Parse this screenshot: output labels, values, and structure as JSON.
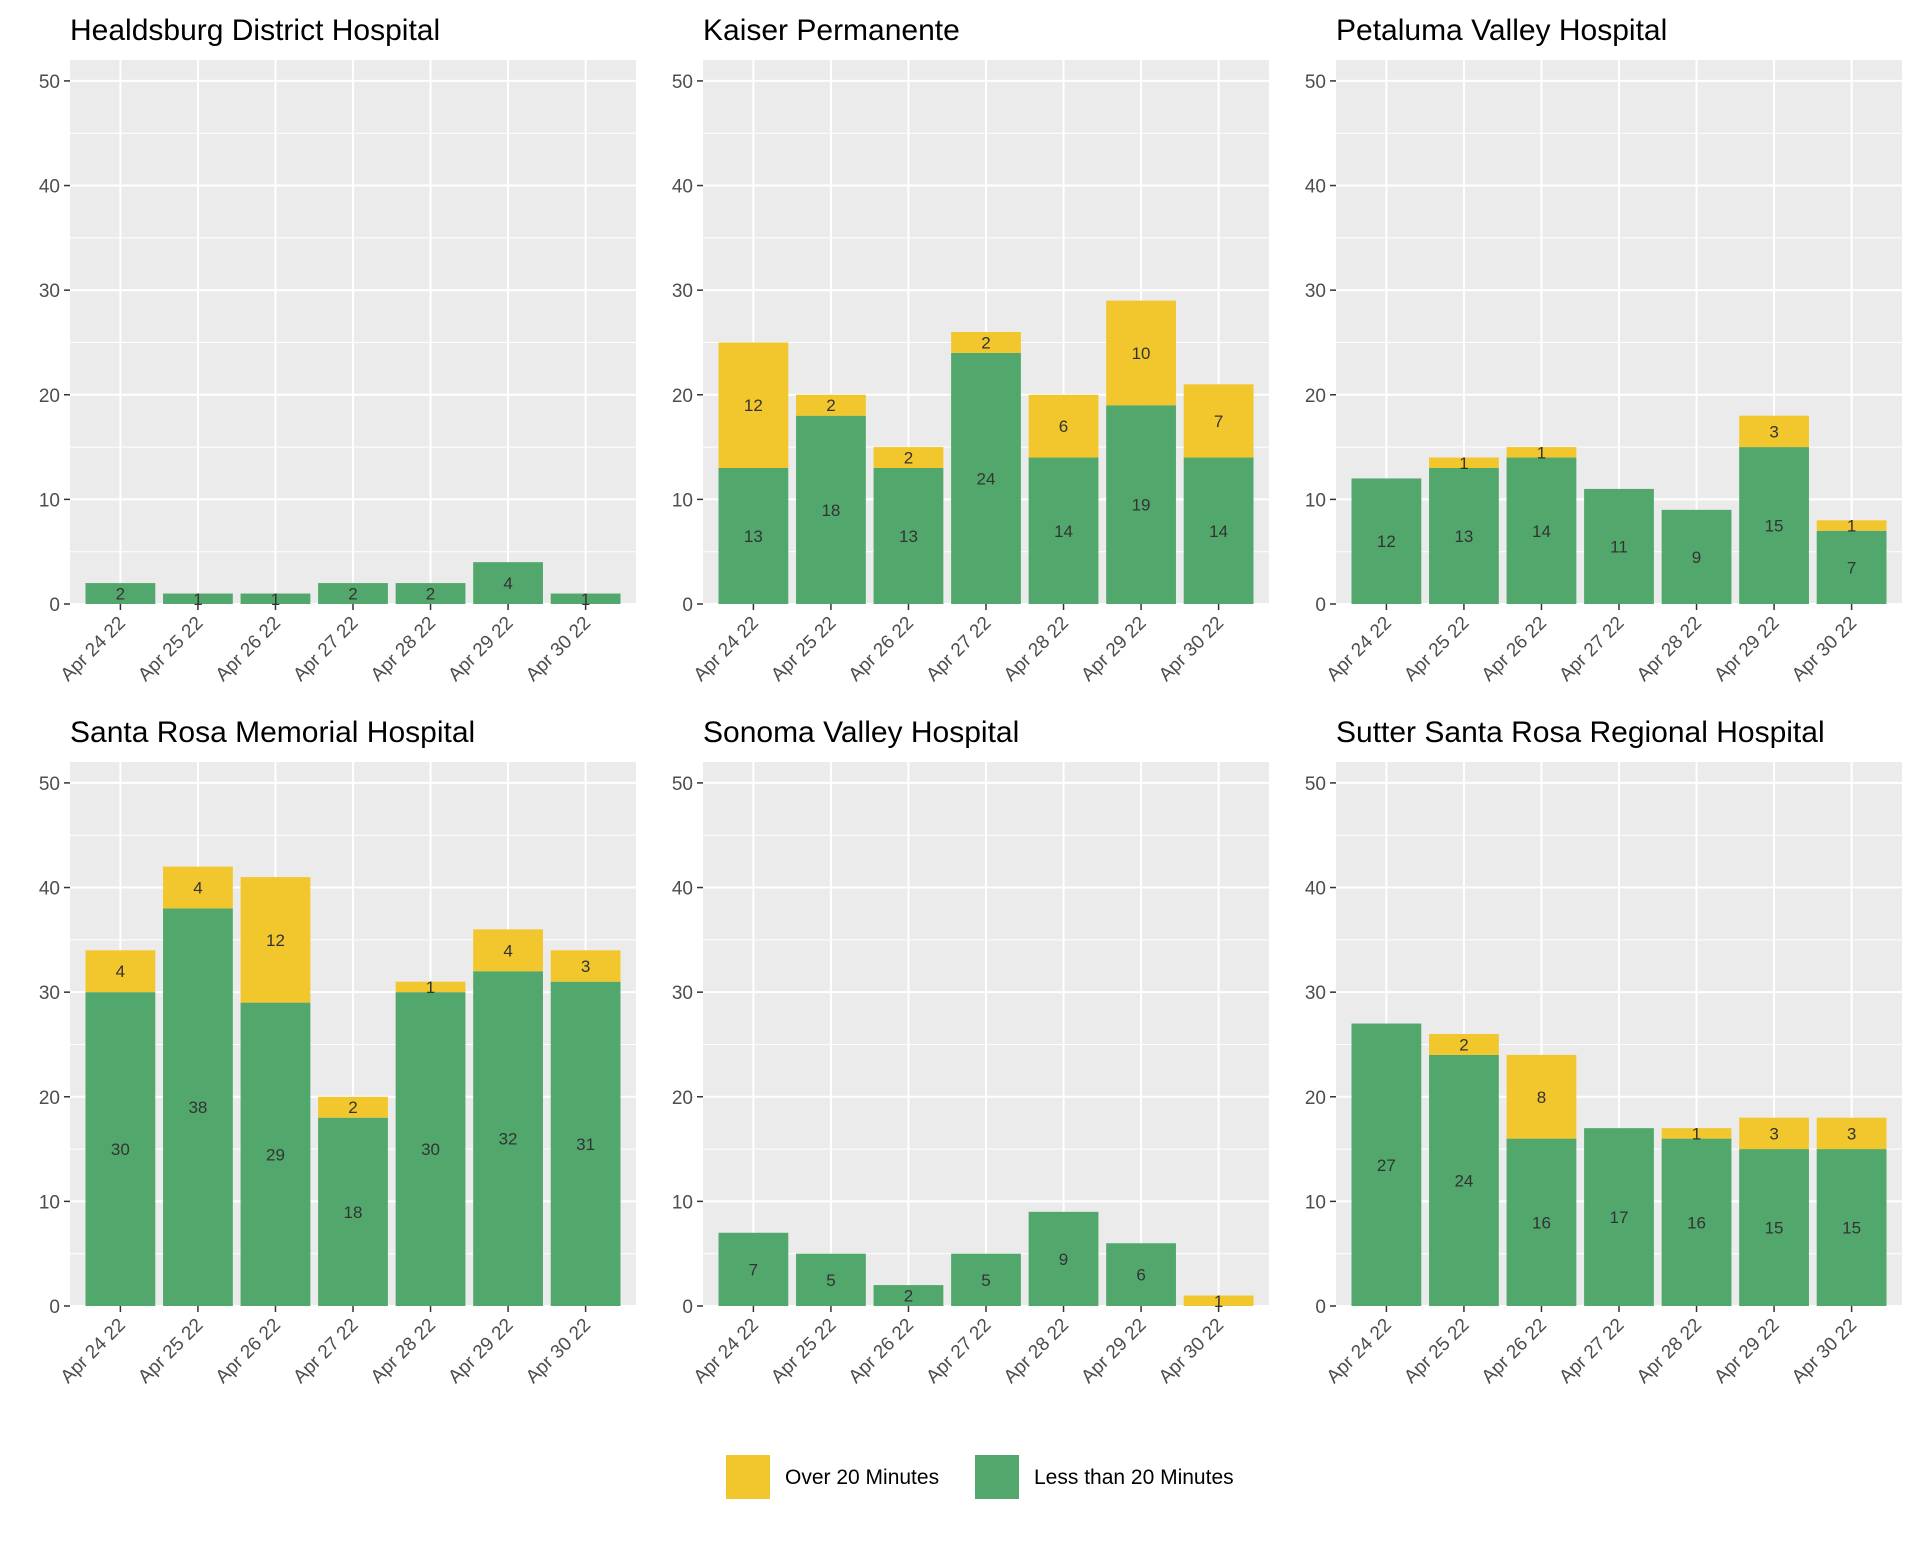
{
  "colors": {
    "over": "#F2C72E",
    "less": "#52A86C",
    "panel_bg": "#EBEBEB",
    "grid": "#FFFFFF",
    "text": "#000000",
    "tick": "#4D4D4D"
  },
  "chart_data": {
    "type": "bar",
    "stacked": true,
    "grid": true,
    "legend_position": "bottom",
    "ylim": [
      0,
      52
    ],
    "y_ticks": [
      0,
      10,
      20,
      30,
      40,
      50
    ],
    "categories": [
      "Apr 24 22",
      "Apr 25 22",
      "Apr 26 22",
      "Apr 27 22",
      "Apr 28 22",
      "Apr 29 22",
      "Apr 30 22"
    ],
    "legend": [
      {
        "key": "over",
        "label": "Over 20 Minutes"
      },
      {
        "key": "less",
        "label": "Less than 20 Minutes"
      }
    ],
    "panels": [
      {
        "title": "Healdsburg District Hospital",
        "series": [
          {
            "name": "Less than 20 Minutes",
            "key": "less",
            "values": [
              2,
              1,
              1,
              2,
              2,
              4,
              1
            ]
          },
          {
            "name": "Over 20 Minutes",
            "key": "over",
            "values": [
              0,
              0,
              0,
              0,
              0,
              0,
              0
            ]
          }
        ]
      },
      {
        "title": "Kaiser Permanente",
        "series": [
          {
            "name": "Less than 20 Minutes",
            "key": "less",
            "values": [
              13,
              18,
              13,
              24,
              14,
              19,
              14
            ]
          },
          {
            "name": "Over 20 Minutes",
            "key": "over",
            "values": [
              12,
              2,
              2,
              2,
              6,
              10,
              7
            ]
          }
        ]
      },
      {
        "title": "Petaluma Valley Hospital",
        "series": [
          {
            "name": "Less than 20 Minutes",
            "key": "less",
            "values": [
              12,
              13,
              14,
              11,
              9,
              15,
              7
            ]
          },
          {
            "name": "Over 20 Minutes",
            "key": "over",
            "values": [
              0,
              1,
              1,
              0,
              0,
              3,
              1
            ]
          }
        ]
      },
      {
        "title": "Santa Rosa Memorial Hospital",
        "series": [
          {
            "name": "Less than 20 Minutes",
            "key": "less",
            "values": [
              30,
              38,
              29,
              18,
              30,
              32,
              31
            ]
          },
          {
            "name": "Over 20 Minutes",
            "key": "over",
            "values": [
              4,
              4,
              12,
              2,
              1,
              4,
              3
            ]
          }
        ]
      },
      {
        "title": "Sonoma Valley Hospital",
        "series": [
          {
            "name": "Less than 20 Minutes",
            "key": "less",
            "values": [
              7,
              5,
              2,
              5,
              9,
              6,
              0
            ]
          },
          {
            "name": "Over 20 Minutes",
            "key": "over",
            "values": [
              0,
              0,
              0,
              0,
              0,
              0,
              1
            ]
          }
        ]
      },
      {
        "title": "Sutter Santa Rosa Regional Hospital",
        "series": [
          {
            "name": "Less than 20 Minutes",
            "key": "less",
            "values": [
              27,
              24,
              16,
              17,
              16,
              15,
              15
            ]
          },
          {
            "name": "Over 20 Minutes",
            "key": "over",
            "values": [
              0,
              2,
              8,
              0,
              1,
              3,
              3
            ]
          }
        ]
      }
    ]
  }
}
